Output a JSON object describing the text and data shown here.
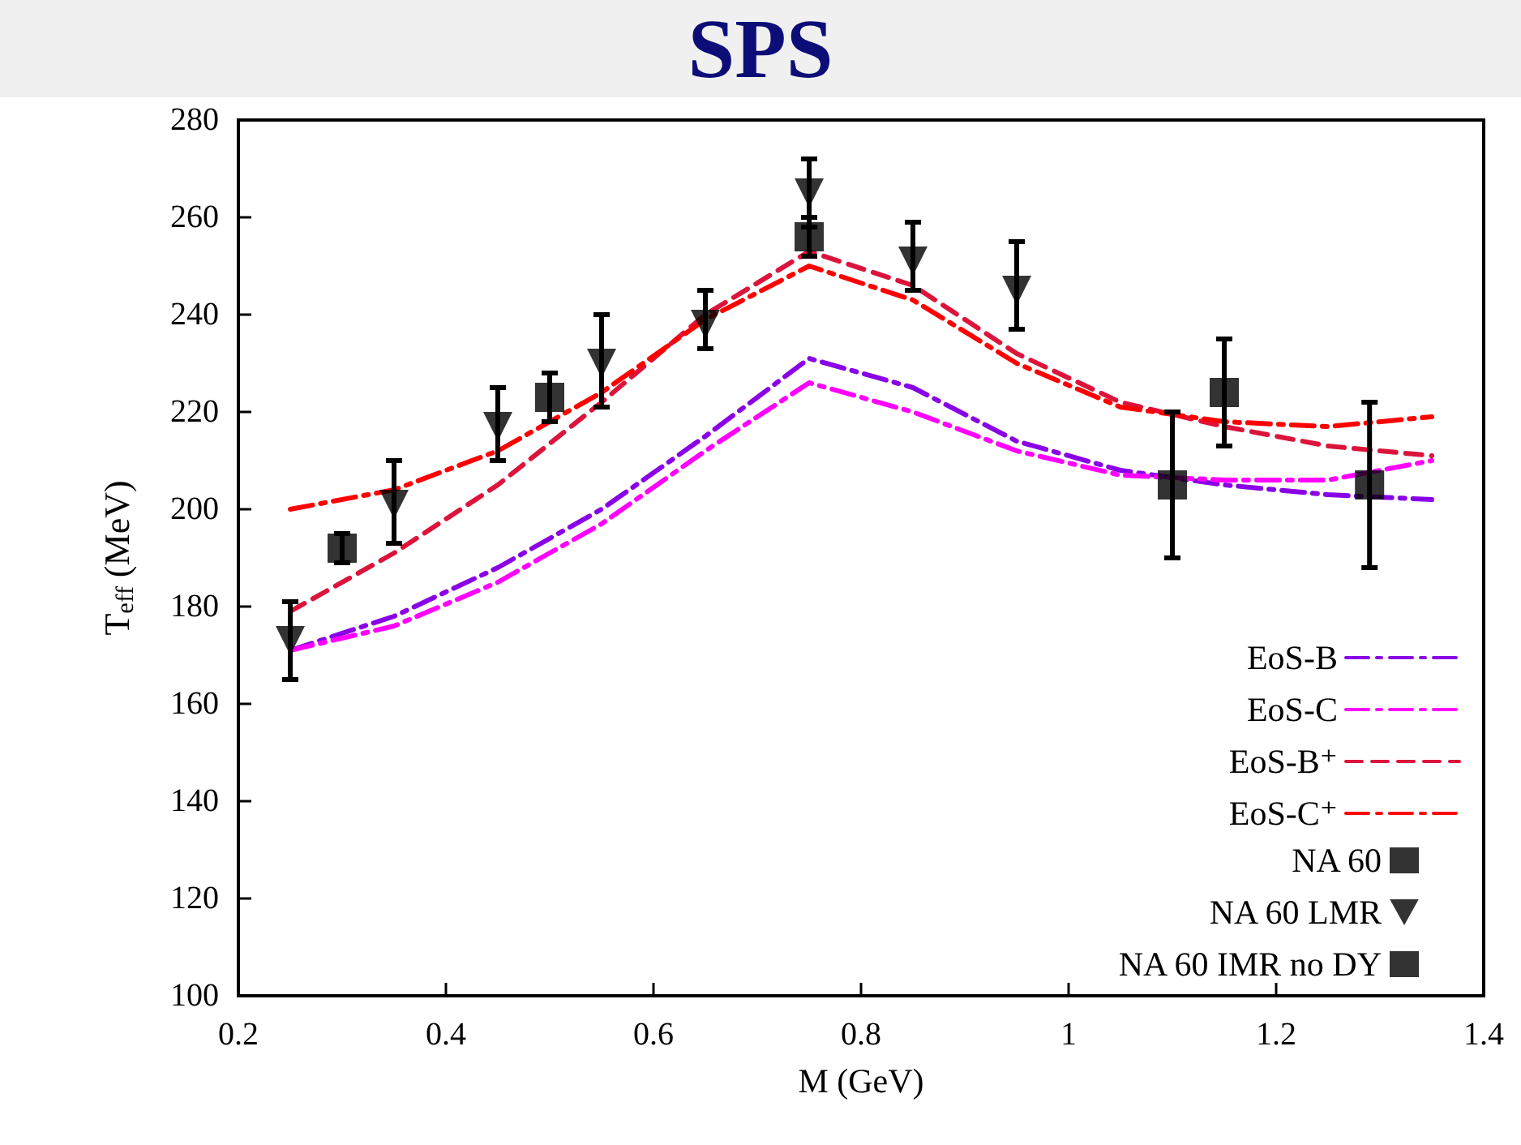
{
  "chart_data": {
    "type": "line",
    "title": "SPS",
    "xlabel": "M (GeV)",
    "ylabel": "T$_{eff}$ (MeV)",
    "xlim": [
      0.2,
      1.4
    ],
    "xticks": [
      0.2,
      0.4,
      0.6,
      0.8,
      1,
      1.2,
      1.4
    ],
    "ylim": [
      100,
      280
    ],
    "yticks": [
      100,
      120,
      140,
      160,
      180,
      200,
      220,
      240,
      260,
      280
    ],
    "legend": "bottom right",
    "marker": "none",
    "series": [
      {
        "name": "EoS-B",
        "color": "#8a00e6",
        "line_style": "dashdot",
        "x": [
          0.25,
          0.35,
          0.45,
          0.55,
          0.65,
          0.75,
          0.85,
          0.95,
          1.05,
          1.15,
          1.25,
          1.35
        ],
        "values": [
          171,
          178,
          188,
          200,
          215,
          231,
          225,
          214,
          208,
          205,
          203,
          202
        ]
      },
      {
        "name": "EoS-C",
        "color": "#ff00ff",
        "line_style": "dashdot",
        "x": [
          0.25,
          0.35,
          0.45,
          0.55,
          0.65,
          0.75,
          0.85,
          0.95,
          1.05,
          1.15,
          1.25,
          1.35
        ],
        "values": [
          171,
          176,
          185,
          197,
          212,
          226,
          220,
          212,
          207,
          206,
          206,
          210
        ]
      },
      {
        "name": "EoS-B⁺",
        "color": "#dc143c",
        "line_style": "dashed",
        "x": [
          0.25,
          0.35,
          0.45,
          0.55,
          0.65,
          0.75,
          0.85,
          0.95,
          1.05,
          1.15,
          1.25,
          1.35
        ],
        "values": [
          179,
          191,
          205,
          222,
          240,
          253,
          246,
          232,
          222,
          217,
          213,
          211
        ]
      },
      {
        "name": "EoS-C⁺",
        "color": "#ff0000",
        "line_style": "dashdot",
        "x": [
          0.25,
          0.35,
          0.45,
          0.55,
          0.65,
          0.75,
          0.85,
          0.95,
          1.05,
          1.15,
          1.25,
          1.35
        ],
        "values": [
          200,
          204,
          212,
          224,
          239,
          250,
          243,
          230,
          221,
          218,
          217,
          219
        ]
      },
      {
        "name": "NA 60",
        "type": "scatter",
        "marker": "square",
        "color": "#000000",
        "x": [
          0.3,
          0.5,
          0.75,
          1.15
        ],
        "values": [
          192,
          223,
          256,
          224
        ],
        "errors": [
          [
            189,
            195
          ],
          [
            218,
            228
          ],
          [
            252,
            260
          ],
          [
            213,
            235
          ]
        ]
      },
      {
        "name": "NA 60 LMR",
        "type": "scatter",
        "marker": "triangle",
        "color": "#000000",
        "x": [
          0.25,
          0.35,
          0.45,
          0.55,
          0.65,
          0.75,
          0.85,
          0.95
        ],
        "values": [
          173,
          201,
          217,
          230,
          238,
          265,
          251,
          245
        ],
        "errors": [
          [
            165,
            181
          ],
          [
            193,
            210
          ],
          [
            210,
            225
          ],
          [
            221,
            240
          ],
          [
            233,
            245
          ],
          [
            258,
            272
          ],
          [
            245,
            259
          ],
          [
            237,
            255
          ]
        ]
      },
      {
        "name": "NA 60 IMR no DY",
        "type": "scatter",
        "marker": "square",
        "color": "#000000",
        "x": [
          1.1,
          1.29
        ],
        "values": [
          205,
          205
        ],
        "errors": [
          [
            190,
            220
          ],
          [
            188,
            222
          ]
        ]
      }
    ]
  }
}
